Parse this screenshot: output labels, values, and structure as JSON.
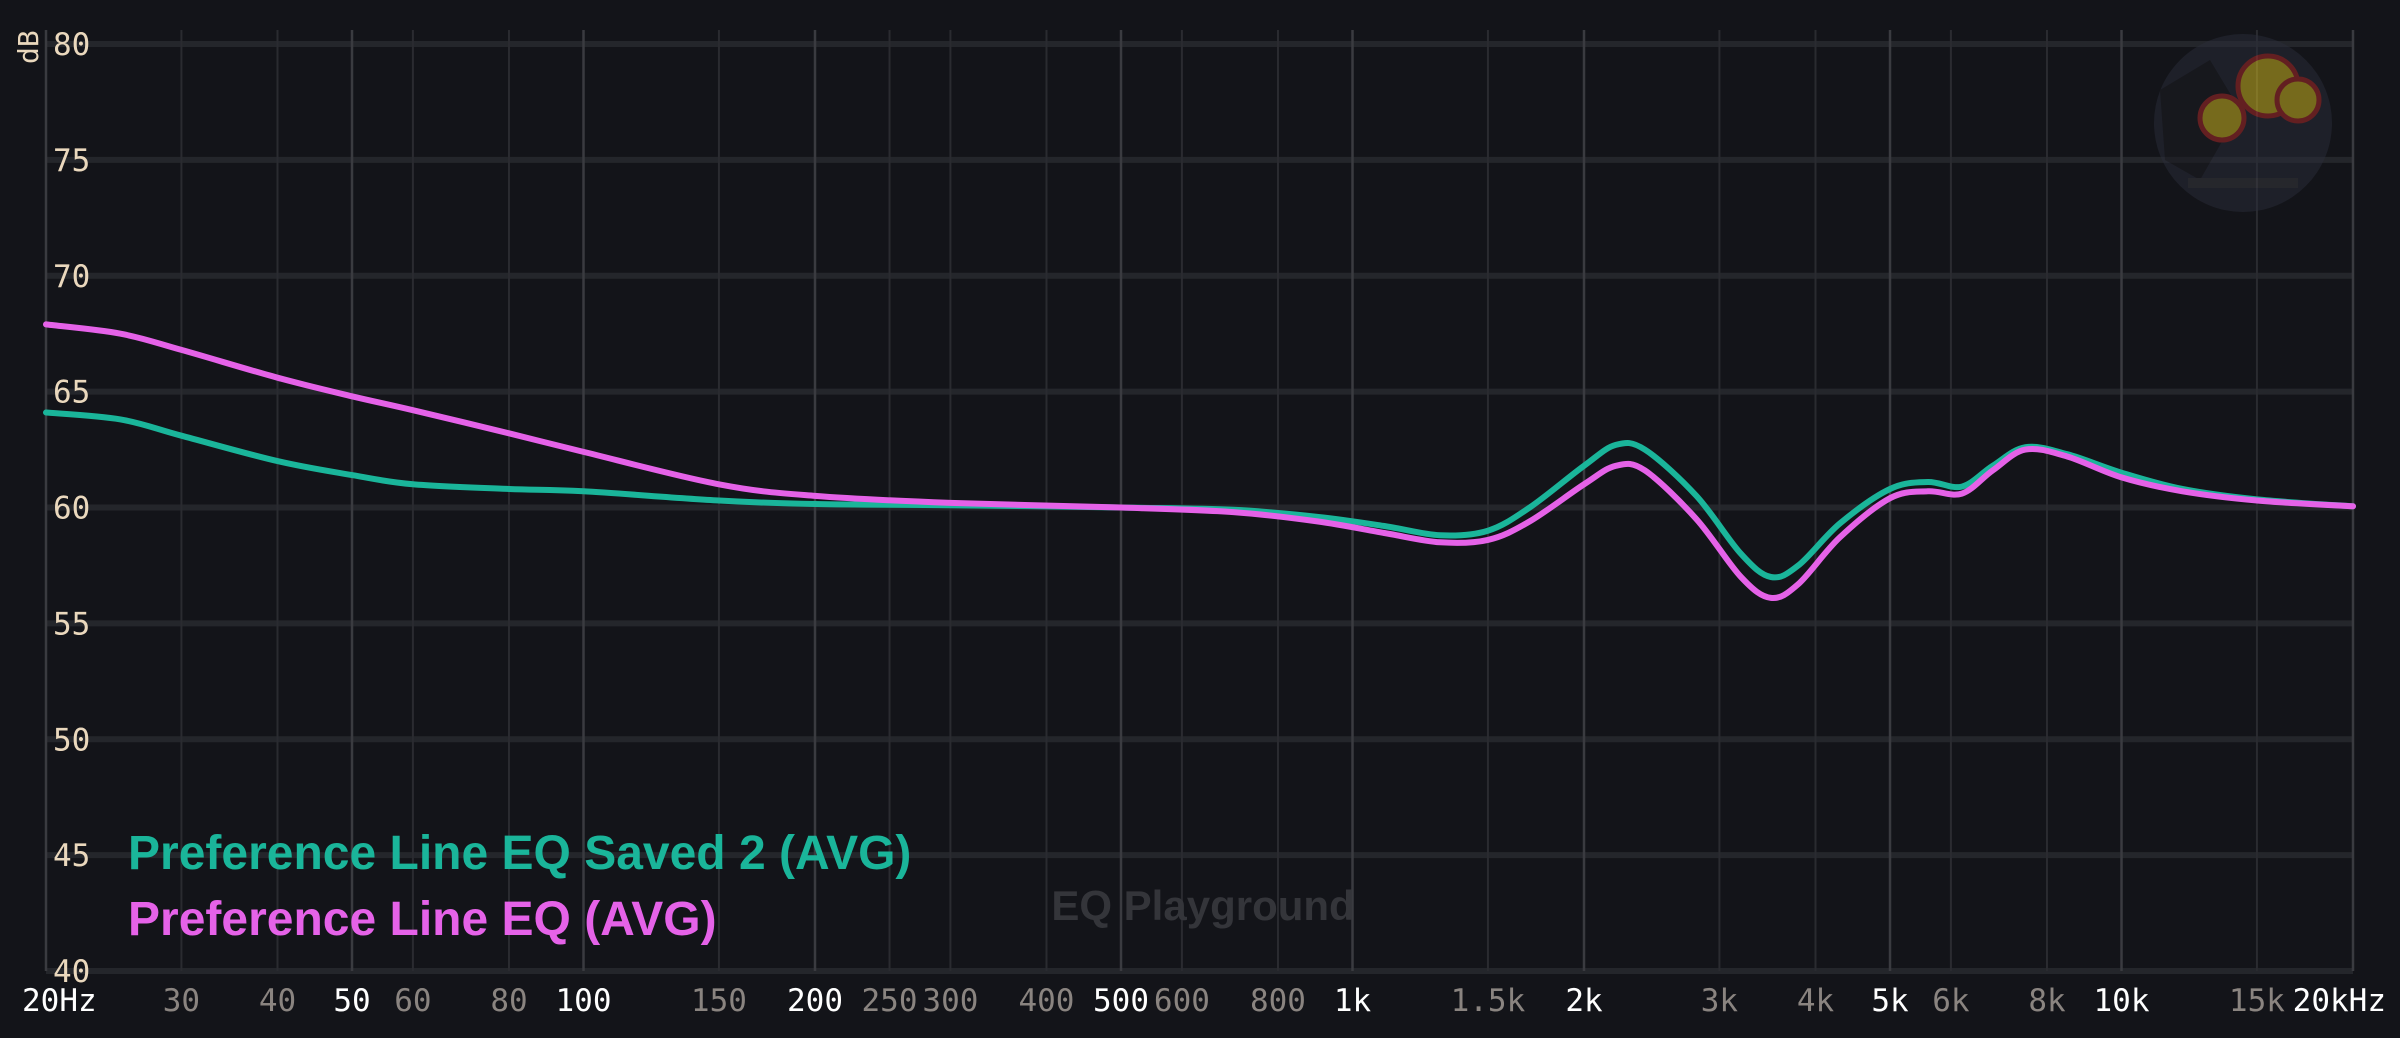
{
  "chart_data": {
    "type": "line",
    "xscale": "log",
    "xlim": [
      20,
      20000
    ],
    "ylim": [
      40,
      80
    ],
    "ylabel": "dB",
    "grid": true,
    "legend_position": "bottom-left",
    "yticks": [
      "40",
      "45",
      "50",
      "55",
      "60",
      "65",
      "70",
      "75",
      "80"
    ],
    "xticks": [
      {
        "f": 20,
        "label": "20Hz",
        "major": true
      },
      {
        "f": 30,
        "label": "30",
        "major": false
      },
      {
        "f": 40,
        "label": "40",
        "major": false
      },
      {
        "f": 50,
        "label": "50",
        "major": true
      },
      {
        "f": 60,
        "label": "60",
        "major": false
      },
      {
        "f": 80,
        "label": "80",
        "major": false
      },
      {
        "f": 100,
        "label": "100",
        "major": true
      },
      {
        "f": 150,
        "label": "150",
        "major": false
      },
      {
        "f": 200,
        "label": "200",
        "major": true
      },
      {
        "f": 250,
        "label": "250",
        "major": false
      },
      {
        "f": 300,
        "label": "300",
        "major": false
      },
      {
        "f": 400,
        "label": "400",
        "major": false
      },
      {
        "f": 500,
        "label": "500",
        "major": true
      },
      {
        "f": 600,
        "label": "600",
        "major": false
      },
      {
        "f": 800,
        "label": "800",
        "major": false
      },
      {
        "f": 1000,
        "label": "1k",
        "major": true
      },
      {
        "f": 1500,
        "label": "1.5k",
        "major": false
      },
      {
        "f": 2000,
        "label": "2k",
        "major": true
      },
      {
        "f": 3000,
        "label": "3k",
        "major": false
      },
      {
        "f": 4000,
        "label": "4k",
        "major": false
      },
      {
        "f": 5000,
        "label": "5k",
        "major": true
      },
      {
        "f": 6000,
        "label": "6k",
        "major": false
      },
      {
        "f": 8000,
        "label": "8k",
        "major": false
      },
      {
        "f": 10000,
        "label": "10k",
        "major": true
      },
      {
        "f": 15000,
        "label": "15k",
        "major": false
      },
      {
        "f": 20000,
        "label": "20kHz",
        "major": true
      }
    ],
    "series": [
      {
        "name": "Preference Line EQ Saved 2 (AVG)",
        "color": "#1ab59a",
        "points": [
          [
            20,
            64.1
          ],
          [
            25,
            63.8
          ],
          [
            30,
            63.1
          ],
          [
            40,
            62.0
          ],
          [
            50,
            61.4
          ],
          [
            60,
            61.0
          ],
          [
            80,
            60.8
          ],
          [
            100,
            60.7
          ],
          [
            150,
            60.3
          ],
          [
            200,
            60.15
          ],
          [
            300,
            60.1
          ],
          [
            500,
            60.0
          ],
          [
            700,
            59.9
          ],
          [
            900,
            59.6
          ],
          [
            1100,
            59.2
          ],
          [
            1300,
            58.8
          ],
          [
            1500,
            59.0
          ],
          [
            1700,
            60.0
          ],
          [
            2000,
            61.8
          ],
          [
            2200,
            62.7
          ],
          [
            2400,
            62.5
          ],
          [
            2800,
            60.5
          ],
          [
            3200,
            58.0
          ],
          [
            3500,
            57.0
          ],
          [
            3800,
            57.5
          ],
          [
            4300,
            59.3
          ],
          [
            5000,
            60.8
          ],
          [
            5600,
            61.1
          ],
          [
            6200,
            60.9
          ],
          [
            6800,
            61.8
          ],
          [
            7500,
            62.6
          ],
          [
            8500,
            62.3
          ],
          [
            10000,
            61.5
          ],
          [
            12000,
            60.8
          ],
          [
            15000,
            60.35
          ],
          [
            20000,
            60.05
          ]
        ]
      },
      {
        "name": "Preference Line EQ (AVG)",
        "color": "#e562e8",
        "points": [
          [
            20,
            67.9
          ],
          [
            25,
            67.5
          ],
          [
            30,
            66.8
          ],
          [
            40,
            65.6
          ],
          [
            50,
            64.8
          ],
          [
            60,
            64.2
          ],
          [
            80,
            63.2
          ],
          [
            100,
            62.4
          ],
          [
            150,
            61.0
          ],
          [
            200,
            60.5
          ],
          [
            300,
            60.2
          ],
          [
            500,
            60.0
          ],
          [
            700,
            59.8
          ],
          [
            900,
            59.4
          ],
          [
            1100,
            58.9
          ],
          [
            1300,
            58.5
          ],
          [
            1500,
            58.6
          ],
          [
            1700,
            59.4
          ],
          [
            2000,
            61.0
          ],
          [
            2200,
            61.8
          ],
          [
            2400,
            61.6
          ],
          [
            2800,
            59.5
          ],
          [
            3200,
            57.0
          ],
          [
            3500,
            56.1
          ],
          [
            3800,
            56.7
          ],
          [
            4300,
            58.7
          ],
          [
            5000,
            60.4
          ],
          [
            5600,
            60.7
          ],
          [
            6200,
            60.6
          ],
          [
            6800,
            61.6
          ],
          [
            7500,
            62.5
          ],
          [
            8500,
            62.2
          ],
          [
            10000,
            61.3
          ],
          [
            12000,
            60.7
          ],
          [
            15000,
            60.3
          ],
          [
            20000,
            60.05
          ]
        ]
      }
    ],
    "watermark": "EQ Playground"
  }
}
